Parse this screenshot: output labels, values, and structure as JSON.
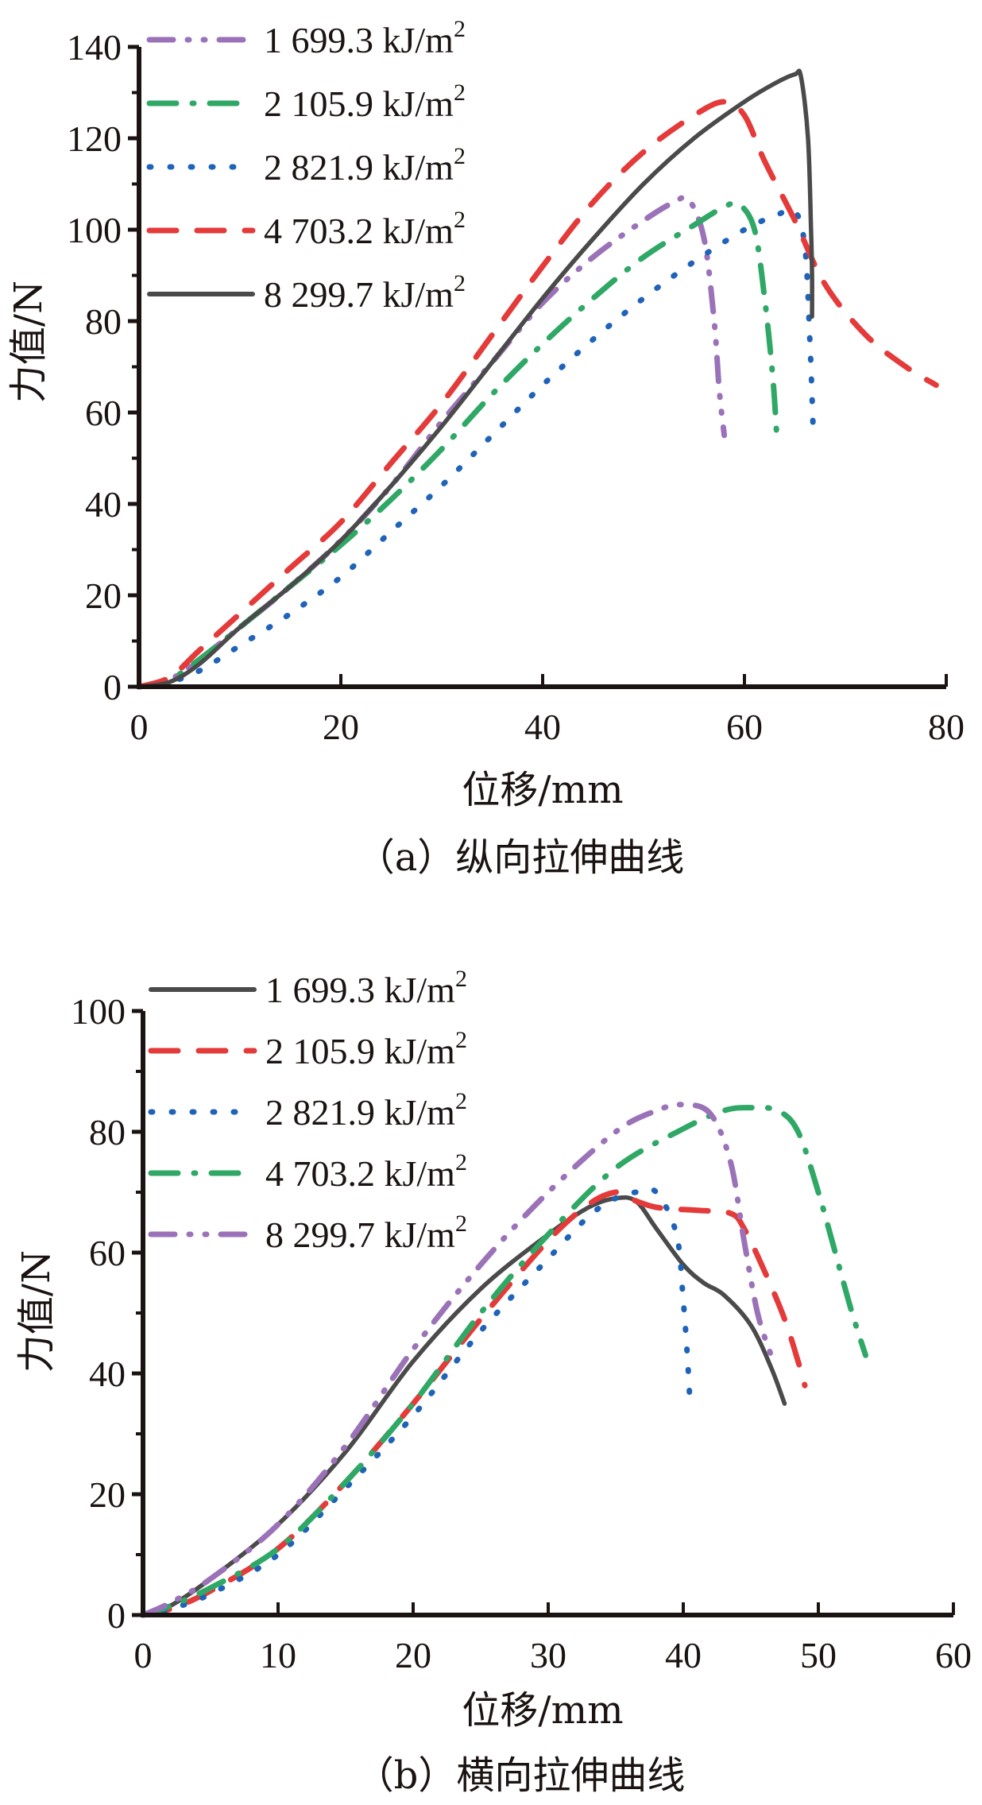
{
  "chart_data": [
    {
      "type": "line",
      "caption": "（a）纵向拉伸曲线",
      "xlabel": "位移/mm",
      "ylabel": "力值/N",
      "xlim": [
        0,
        80
      ],
      "ylim": [
        0,
        140
      ],
      "xticks": [
        0,
        20,
        40,
        60,
        80
      ],
      "yticks": [
        0,
        20,
        40,
        60,
        80,
        100,
        120,
        140
      ],
      "grid": false,
      "legend_position": "top-left",
      "series": [
        {
          "name": "1 699.3 kJ/m²",
          "label": "1 699.3 kJ/m",
          "sup": "2",
          "color": "#9b72b8",
          "style": "dash-dot-dot",
          "x": [
            0,
            3,
            6,
            10,
            15,
            20,
            25,
            30,
            35,
            40,
            45,
            50,
            53,
            54.5,
            56,
            57,
            57.5,
            58
          ],
          "y": [
            0,
            1.5,
            6,
            13,
            22,
            32,
            44,
            58,
            71,
            84,
            94,
            102,
            106,
            106.5,
            98,
            80,
            65,
            55
          ]
        },
        {
          "name": "2 105.9 kJ/m²",
          "label": "2 105.9 kJ/m",
          "sup": "2",
          "color": "#2fa866",
          "style": "dash-dot",
          "x": [
            0,
            3,
            6,
            10,
            15,
            20,
            25,
            30,
            35,
            40,
            45,
            50,
            55,
            58,
            59.5,
            61,
            62,
            62.8,
            63.2
          ],
          "y": [
            0,
            1.5,
            6,
            13,
            22,
            31,
            41,
            52,
            64,
            75,
            85,
            94,
            101,
            105,
            105.5,
            100,
            85,
            68,
            55
          ]
        },
        {
          "name": "2 821.9 kJ/m²",
          "label": "2 821.9 kJ/m",
          "sup": "2",
          "color": "#1f63b8",
          "style": "dotted",
          "x": [
            0,
            3,
            6,
            10,
            15,
            20,
            25,
            30,
            35,
            40,
            45,
            50,
            55,
            60,
            63,
            65,
            66,
            66.5,
            66.8
          ],
          "y": [
            0,
            1,
            3.5,
            9,
            16,
            24,
            34,
            44,
            55,
            66,
            76,
            85,
            93,
            100,
            103,
            104,
            96,
            75,
            57
          ]
        },
        {
          "name": "4 703.2 kJ/m²",
          "label": "4 703.2 kJ/m",
          "sup": "2",
          "color": "#e43a3a",
          "style": "dashed",
          "x": [
            0,
            3,
            6,
            10,
            15,
            20,
            25,
            30,
            35,
            40,
            45,
            50,
            55,
            58,
            60,
            62,
            65,
            68,
            72,
            76,
            79
          ],
          "y": [
            0,
            2,
            8,
            16,
            26,
            36,
            49,
            62,
            77,
            92,
            106,
            117,
            125,
            128,
            125,
            115,
            102,
            88,
            77,
            70,
            66
          ]
        },
        {
          "name": "8 299.7 kJ/m²",
          "label": "8 299.7 kJ/m",
          "sup": "2",
          "color": "#4a4a4a",
          "style": "solid",
          "x": [
            0,
            3,
            6,
            10,
            15,
            20,
            25,
            30,
            35,
            40,
            45,
            50,
            55,
            60,
            63,
            65,
            65.6,
            66.3,
            66.6,
            66.7,
            66.7
          ],
          "y": [
            0,
            1,
            5,
            13,
            22,
            32,
            44,
            57,
            71,
            85,
            98,
            110,
            120,
            128,
            132,
            134,
            133.5,
            120,
            100,
            90,
            81
          ]
        }
      ]
    },
    {
      "type": "line",
      "caption": "（b）横向拉伸曲线",
      "xlabel": "位移/mm",
      "ylabel": "力值/N",
      "xlim": [
        0,
        60
      ],
      "ylim": [
        0,
        100
      ],
      "xticks": [
        0,
        10,
        20,
        30,
        40,
        50,
        60
      ],
      "yticks": [
        0,
        20,
        40,
        60,
        80,
        100
      ],
      "grid": false,
      "legend_position": "top-left",
      "series": [
        {
          "name": "1 699.3 kJ/m²",
          "label": "1 699.3 kJ/m",
          "sup": "2",
          "color": "#4a4a4a",
          "style": "solid",
          "x": [
            0,
            2,
            5,
            10,
            15,
            20,
            25,
            30,
            33,
            35,
            36.5,
            38,
            40,
            41.5,
            43,
            45,
            46.5,
            47.5
          ],
          "y": [
            0,
            1.5,
            6,
            15,
            27,
            42,
            54,
            63,
            67.5,
            69,
            68.5,
            64,
            58,
            55,
            53,
            48,
            41,
            35
          ]
        },
        {
          "name": "2 105.9 kJ/m²",
          "label": "2 105.9 kJ/m",
          "sup": "2",
          "color": "#e43a3a",
          "style": "dashed",
          "x": [
            0,
            2,
            5,
            10,
            15,
            20,
            25,
            30,
            33,
            35,
            36,
            38,
            41,
            43.5,
            44.5,
            46,
            47.5,
            48.5,
            49
          ],
          "y": [
            0,
            1,
            4,
            11,
            22,
            35,
            49,
            62,
            68,
            70,
            69,
            67.5,
            67,
            66.5,
            64,
            57,
            49,
            42,
            38
          ]
        },
        {
          "name": "2 821.9 kJ/m²",
          "label": "2 821.9 kJ/m",
          "sup": "2",
          "color": "#1f63b8",
          "style": "dotted",
          "x": [
            0,
            2,
            5,
            10,
            15,
            20,
            25,
            30,
            33,
            35,
            36.5,
            38,
            39.5,
            40,
            40.3,
            40.5
          ],
          "y": [
            0,
            1,
            3.5,
            10,
            21,
            33,
            47,
            59,
            66,
            69,
            70,
            70,
            63,
            52,
            43,
            35
          ]
        },
        {
          "name": "4 703.2 kJ/m²",
          "label": "4 703.2 kJ/m",
          "sup": "2",
          "color": "#2fa866",
          "style": "dash-dot",
          "x": [
            0,
            2,
            5,
            10,
            15,
            20,
            25,
            30,
            35,
            40,
            43,
            45,
            47,
            48.5,
            50,
            51.5,
            52.5,
            53.5
          ],
          "y": [
            0,
            1.5,
            4.5,
            11,
            22,
            35,
            50,
            63,
            74,
            80.5,
            83.5,
            84,
            83.5,
            80,
            70,
            58,
            50,
            43
          ]
        },
        {
          "name": "8 299.7 kJ/m²",
          "label": "8 299.7 kJ/m",
          "sup": "2",
          "color": "#9b72b8",
          "style": "dash-dot-dot",
          "x": [
            0,
            2,
            5,
            10,
            15,
            20,
            25,
            30,
            35,
            38,
            40,
            42,
            43.5,
            44.5,
            45.5,
            46.5
          ],
          "y": [
            0,
            2,
            6,
            15,
            28,
            44,
            58,
            70,
            80,
            83.5,
            84.5,
            83,
            75,
            62,
            50,
            43
          ]
        }
      ]
    }
  ]
}
